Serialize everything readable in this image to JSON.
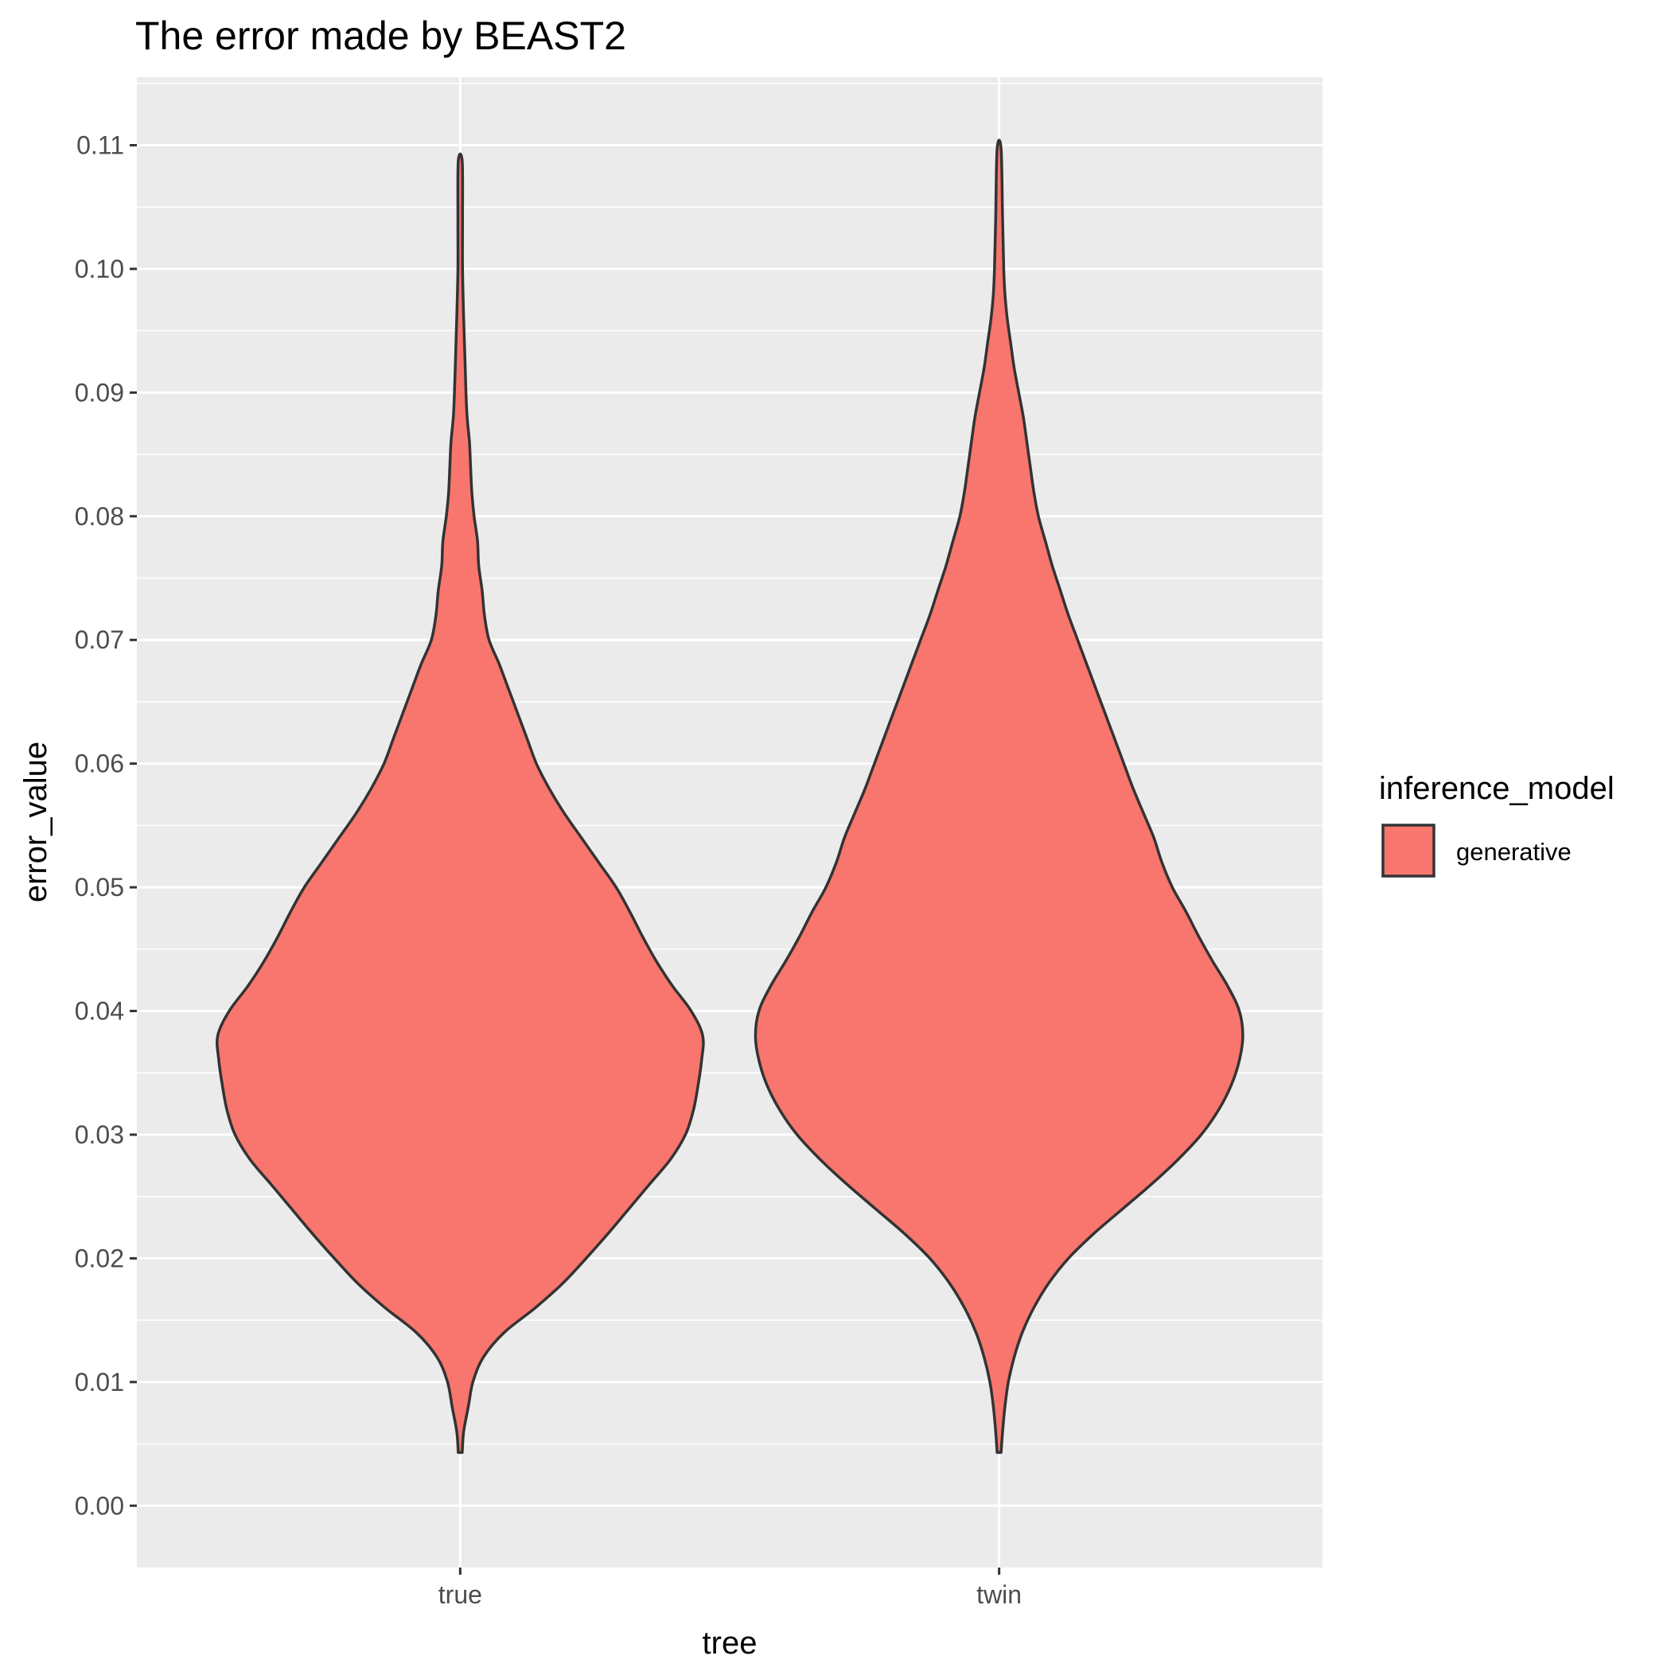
{
  "chart_data": {
    "type": "violin",
    "title": "The error made by BEAST2",
    "xlabel": "tree",
    "ylabel": "error_value",
    "categories": [
      "true",
      "twin"
    ],
    "ylim": [
      -0.005,
      0.1155
    ],
    "yticks": [
      0.0,
      0.01,
      0.02,
      0.03,
      0.04,
      0.05,
      0.06,
      0.07,
      0.08,
      0.09,
      0.1,
      0.11
    ],
    "ytick_labels": [
      "0.00",
      "0.01",
      "0.02",
      "0.03",
      "0.04",
      "0.05",
      "0.06",
      "0.07",
      "0.08",
      "0.09",
      "0.10",
      "0.11"
    ],
    "grid": true,
    "legend": {
      "title": "inference_model",
      "entries": [
        "generative"
      ],
      "position": "right"
    },
    "fill_color": "#F8766D",
    "outline_color": "#333333",
    "panel_color": "#EBEBEB",
    "series": [
      {
        "name": "generative",
        "violins": [
          {
            "category": "true",
            "min": 0.0043,
            "max": 0.1087,
            "density_profile": [
              [
                0.0043,
                0.0
              ],
              [
                0.006,
                0.003
              ],
              [
                0.008,
                0.007
              ],
              [
                0.01,
                0.011
              ],
              [
                0.012,
                0.02
              ],
              [
                0.014,
                0.038
              ],
              [
                0.016,
                0.065
              ],
              [
                0.018,
                0.089
              ],
              [
                0.02,
                0.109
              ],
              [
                0.022,
                0.128
              ],
              [
                0.024,
                0.146
              ],
              [
                0.026,
                0.164
              ],
              [
                0.028,
                0.182
              ],
              [
                0.03,
                0.195
              ],
              [
                0.032,
                0.202
              ],
              [
                0.034,
                0.206
              ],
              [
                0.036,
                0.209
              ],
              [
                0.038,
                0.21
              ],
              [
                0.04,
                0.2
              ],
              [
                0.042,
                0.184
              ],
              [
                0.044,
                0.17
              ],
              [
                0.046,
                0.158
              ],
              [
                0.048,
                0.147
              ],
              [
                0.05,
                0.135
              ],
              [
                0.052,
                0.12
              ],
              [
                0.054,
                0.105
              ],
              [
                0.056,
                0.09
              ],
              [
                0.058,
                0.077
              ],
              [
                0.06,
                0.066
              ],
              [
                0.062,
                0.058
              ],
              [
                0.064,
                0.05
              ],
              [
                0.066,
                0.042
              ],
              [
                0.068,
                0.034
              ],
              [
                0.07,
                0.025
              ],
              [
                0.072,
                0.021
              ],
              [
                0.074,
                0.019
              ],
              [
                0.076,
                0.016
              ],
              [
                0.078,
                0.015
              ],
              [
                0.08,
                0.012
              ],
              [
                0.082,
                0.01
              ],
              [
                0.084,
                0.009
              ],
              [
                0.086,
                0.008
              ],
              [
                0.088,
                0.006
              ],
              [
                0.09,
                0.005
              ],
              [
                0.093,
                0.004
              ],
              [
                0.096,
                0.003
              ],
              [
                0.1,
                0.002
              ],
              [
                0.104,
                0.002
              ],
              [
                0.1087,
                0.0
              ]
            ]
          },
          {
            "category": "twin",
            "min": 0.0043,
            "max": 0.1097,
            "density_profile": [
              [
                0.0043,
                0.0
              ],
              [
                0.006,
                0.003
              ],
              [
                0.008,
                0.005
              ],
              [
                0.01,
                0.008
              ],
              [
                0.012,
                0.013
              ],
              [
                0.014,
                0.02
              ],
              [
                0.016,
                0.03
              ],
              [
                0.018,
                0.043
              ],
              [
                0.02,
                0.06
              ],
              [
                0.022,
                0.082
              ],
              [
                0.024,
                0.107
              ],
              [
                0.026,
                0.132
              ],
              [
                0.028,
                0.155
              ],
              [
                0.03,
                0.175
              ],
              [
                0.032,
                0.19
              ],
              [
                0.034,
                0.201
              ],
              [
                0.036,
                0.208
              ],
              [
                0.038,
                0.211
              ],
              [
                0.04,
                0.208
              ],
              [
                0.042,
                0.198
              ],
              [
                0.044,
                0.185
              ],
              [
                0.046,
                0.173
              ],
              [
                0.048,
                0.162
              ],
              [
                0.05,
                0.15
              ],
              [
                0.052,
                0.141
              ],
              [
                0.054,
                0.134
              ],
              [
                0.056,
                0.125
              ],
              [
                0.058,
                0.116
              ],
              [
                0.06,
                0.108
              ],
              [
                0.062,
                0.1
              ],
              [
                0.064,
                0.092
              ],
              [
                0.066,
                0.084
              ],
              [
                0.068,
                0.076
              ],
              [
                0.07,
                0.068
              ],
              [
                0.072,
                0.06
              ],
              [
                0.074,
                0.053
              ],
              [
                0.076,
                0.046
              ],
              [
                0.078,
                0.04
              ],
              [
                0.08,
                0.034
              ],
              [
                0.082,
                0.03
              ],
              [
                0.084,
                0.027
              ],
              [
                0.086,
                0.024
              ],
              [
                0.088,
                0.021
              ],
              [
                0.09,
                0.017
              ],
              [
                0.092,
                0.013
              ],
              [
                0.094,
                0.01
              ],
              [
                0.096,
                0.007
              ],
              [
                0.098,
                0.005
              ],
              [
                0.1,
                0.004
              ],
              [
                0.104,
                0.003
              ],
              [
                0.1097,
                0.0
              ]
            ]
          }
        ]
      }
    ]
  }
}
